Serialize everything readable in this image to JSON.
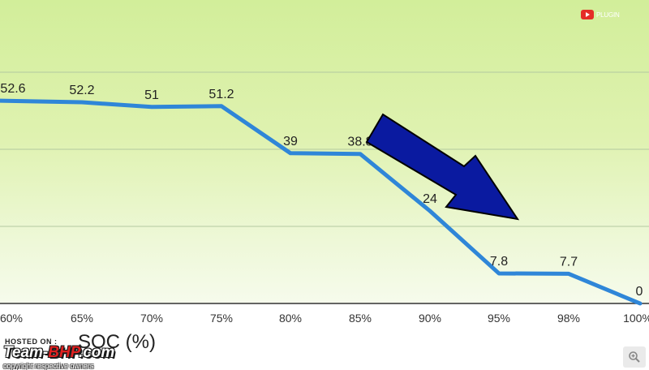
{
  "chart_data": {
    "type": "line",
    "categories": [
      "60%",
      "65%",
      "70%",
      "75%",
      "80%",
      "85%",
      "90%",
      "95%",
      "98%",
      "100%"
    ],
    "series": [
      {
        "values": [
          52.6,
          52.2,
          51,
          51.2,
          39,
          38.8,
          24,
          7.8,
          7.7,
          0
        ]
      }
    ],
    "data_labels": [
      "52.6",
      "52.2",
      "51",
      "51.2",
      "39",
      "38.8",
      "24",
      "7.8",
      "7.7",
      "0"
    ],
    "xlabel": "SOC (%)",
    "ylabel": "",
    "ylim": [
      0,
      80
    ],
    "grid": true,
    "annotations": [
      "down-arrow"
    ],
    "colors": {
      "line": "#2f86d8",
      "arrow_fill": "#0a1aa0",
      "arrow_stroke": "#000000",
      "gridline": "#b4c9a0"
    }
  },
  "overlays": {
    "youtube_label": "PLUGIN",
    "hosted_on": "HOSTED ON :",
    "brand_prefix": "Team-",
    "brand_accent": "BHP",
    "brand_suffix": ".com",
    "copyright": "copyright respective owners",
    "zoom_icon": "zoom-in-icon"
  }
}
